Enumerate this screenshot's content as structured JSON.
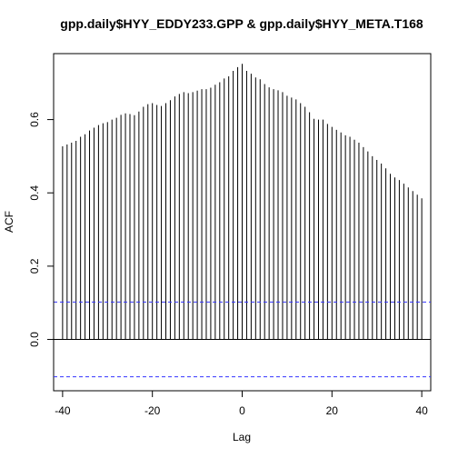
{
  "chart_data": {
    "type": "bar",
    "title": "gpp.daily$HYY_EDDY233.GPP & gpp.daily$HYY_META.T168",
    "xlabel": "Lag",
    "ylabel": "ACF",
    "xlim": [
      -42,
      42
    ],
    "ylim": [
      -0.14,
      0.78
    ],
    "x_ticks": [
      -40,
      -20,
      0,
      20,
      40
    ],
    "x_tick_labels": [
      "-40",
      "-20",
      "0",
      "20",
      "40"
    ],
    "y_ticks": [
      0.0,
      0.2,
      0.4,
      0.6
    ],
    "y_tick_labels": [
      "0.0",
      "0.2",
      "0.4",
      "0.6"
    ],
    "confidence_limit": 0.102,
    "confidence_color": "#3333ff",
    "lags": [
      -40,
      -39,
      -38,
      -37,
      -36,
      -35,
      -34,
      -33,
      -32,
      -31,
      -30,
      -29,
      -28,
      -27,
      -26,
      -25,
      -24,
      -23,
      -22,
      -21,
      -20,
      -19,
      -18,
      -17,
      -16,
      -15,
      -14,
      -13,
      -12,
      -11,
      -10,
      -9,
      -8,
      -7,
      -6,
      -5,
      -4,
      -3,
      -2,
      -1,
      0,
      1,
      2,
      3,
      4,
      5,
      6,
      7,
      8,
      9,
      10,
      11,
      12,
      13,
      14,
      15,
      16,
      17,
      18,
      19,
      20,
      21,
      22,
      23,
      24,
      25,
      26,
      27,
      28,
      29,
      30,
      31,
      32,
      33,
      34,
      35,
      36,
      37,
      38,
      39,
      40
    ],
    "values": [
      0.527,
      0.532,
      0.537,
      0.542,
      0.553,
      0.56,
      0.57,
      0.578,
      0.585,
      0.59,
      0.593,
      0.6,
      0.605,
      0.613,
      0.617,
      0.615,
      0.612,
      0.622,
      0.635,
      0.642,
      0.645,
      0.64,
      0.637,
      0.645,
      0.653,
      0.663,
      0.67,
      0.675,
      0.672,
      0.675,
      0.679,
      0.683,
      0.683,
      0.687,
      0.695,
      0.702,
      0.712,
      0.718,
      0.733,
      0.743,
      0.752,
      0.733,
      0.725,
      0.715,
      0.71,
      0.697,
      0.688,
      0.683,
      0.68,
      0.675,
      0.665,
      0.66,
      0.655,
      0.645,
      0.635,
      0.62,
      0.602,
      0.6,
      0.6,
      0.588,
      0.58,
      0.572,
      0.565,
      0.557,
      0.553,
      0.545,
      0.537,
      0.525,
      0.513,
      0.5,
      0.49,
      0.48,
      0.467,
      0.452,
      0.442,
      0.435,
      0.425,
      0.415,
      0.405,
      0.395,
      0.385
    ]
  }
}
